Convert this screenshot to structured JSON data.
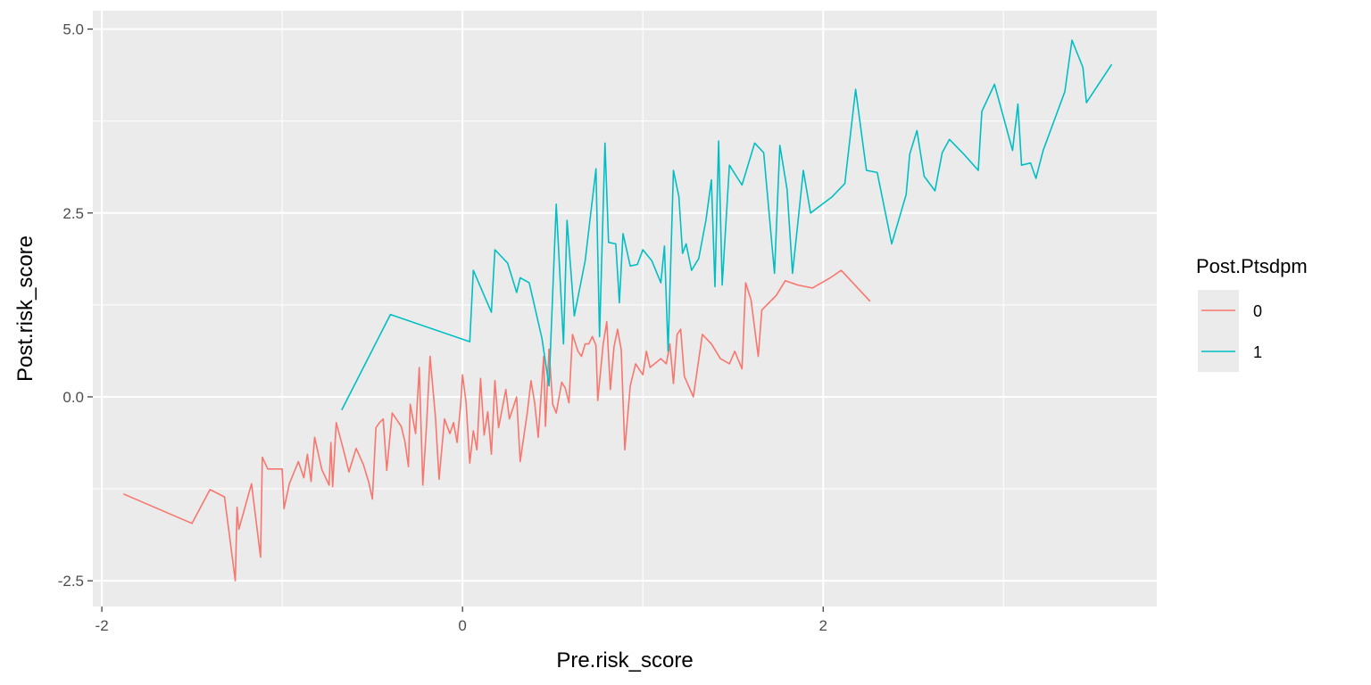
{
  "chart_data": {
    "type": "line",
    "xlabel": "Pre.risk_score",
    "ylabel": "Post.risk_score",
    "xlim": [
      -2.05,
      3.85
    ],
    "ylim": [
      -2.85,
      5.25
    ],
    "x_ticks": [
      -2,
      0,
      2
    ],
    "x_tick_labels": [
      "-2",
      "0",
      "2"
    ],
    "y_ticks": [
      -2.5,
      0.0,
      2.5,
      5.0
    ],
    "y_tick_labels": [
      "-2.5",
      "0.0",
      "2.5",
      "5.0"
    ],
    "grid": true,
    "legend": {
      "title": "Post.Ptsdpm",
      "placement": "right"
    },
    "series": [
      {
        "name": "0",
        "color": "#F8766D",
        "points": [
          [
            -1.88,
            -1.32
          ],
          [
            -1.5,
            -1.72
          ],
          [
            -1.4,
            -1.26
          ],
          [
            -1.32,
            -1.36
          ],
          [
            -1.26,
            -2.5
          ],
          [
            -1.25,
            -1.5
          ],
          [
            -1.24,
            -1.8
          ],
          [
            -1.17,
            -1.18
          ],
          [
            -1.12,
            -2.18
          ],
          [
            -1.11,
            -0.82
          ],
          [
            -1.08,
            -0.98
          ],
          [
            -1.04,
            -0.98
          ],
          [
            -1.0,
            -0.98
          ],
          [
            -0.99,
            -1.52
          ],
          [
            -0.96,
            -1.18
          ],
          [
            -0.91,
            -0.88
          ],
          [
            -0.88,
            -1.1
          ],
          [
            -0.86,
            -0.78
          ],
          [
            -0.84,
            -1.15
          ],
          [
            -0.82,
            -0.55
          ],
          [
            -0.78,
            -0.99
          ],
          [
            -0.74,
            -1.2
          ],
          [
            -0.73,
            -0.62
          ],
          [
            -0.72,
            -1.22
          ],
          [
            -0.7,
            -0.35
          ],
          [
            -0.66,
            -0.72
          ],
          [
            -0.63,
            -1.02
          ],
          [
            -0.59,
            -0.7
          ],
          [
            -0.55,
            -0.92
          ],
          [
            -0.52,
            -1.16
          ],
          [
            -0.5,
            -1.39
          ],
          [
            -0.48,
            -0.42
          ],
          [
            -0.46,
            -0.35
          ],
          [
            -0.44,
            -0.3
          ],
          [
            -0.42,
            -1.0
          ],
          [
            -0.39,
            -0.22
          ],
          [
            -0.34,
            -0.4
          ],
          [
            -0.32,
            -0.6
          ],
          [
            -0.3,
            -0.95
          ],
          [
            -0.29,
            -0.1
          ],
          [
            -0.26,
            -0.5
          ],
          [
            -0.24,
            0.4
          ],
          [
            -0.22,
            -1.2
          ],
          [
            -0.2,
            -0.4
          ],
          [
            -0.18,
            0.55
          ],
          [
            -0.15,
            -0.28
          ],
          [
            -0.13,
            -1.12
          ],
          [
            -0.1,
            -0.3
          ],
          [
            -0.07,
            -0.5
          ],
          [
            -0.05,
            -0.35
          ],
          [
            -0.03,
            -0.62
          ],
          [
            -0.01,
            -0.1
          ],
          [
            0.0,
            0.3
          ],
          [
            0.02,
            -0.08
          ],
          [
            0.04,
            -0.9
          ],
          [
            0.06,
            -0.46
          ],
          [
            0.08,
            -0.72
          ],
          [
            0.1,
            0.25
          ],
          [
            0.12,
            -0.52
          ],
          [
            0.14,
            -0.2
          ],
          [
            0.16,
            -0.78
          ],
          [
            0.18,
            0.22
          ],
          [
            0.2,
            -0.42
          ],
          [
            0.24,
            0.1
          ],
          [
            0.26,
            -0.3
          ],
          [
            0.3,
            0.0
          ],
          [
            0.32,
            -0.88
          ],
          [
            0.36,
            -0.2
          ],
          [
            0.38,
            0.22
          ],
          [
            0.4,
            -0.08
          ],
          [
            0.42,
            -0.55
          ],
          [
            0.45,
            0.55
          ],
          [
            0.46,
            -0.4
          ],
          [
            0.48,
            0.65
          ],
          [
            0.5,
            -0.1
          ],
          [
            0.52,
            -0.22
          ],
          [
            0.55,
            0.2
          ],
          [
            0.57,
            0.12
          ],
          [
            0.59,
            -0.08
          ],
          [
            0.61,
            0.85
          ],
          [
            0.64,
            0.62
          ],
          [
            0.66,
            0.55
          ],
          [
            0.68,
            0.72
          ],
          [
            0.7,
            0.72
          ],
          [
            0.72,
            0.82
          ],
          [
            0.74,
            0.7
          ],
          [
            0.75,
            -0.05
          ],
          [
            0.78,
            0.72
          ],
          [
            0.8,
            1.02
          ],
          [
            0.82,
            0.1
          ],
          [
            0.84,
            0.68
          ],
          [
            0.86,
            0.92
          ],
          [
            0.88,
            0.64
          ],
          [
            0.9,
            -0.72
          ],
          [
            0.93,
            0.15
          ],
          [
            0.96,
            0.45
          ],
          [
            1.0,
            0.3
          ],
          [
            1.02,
            0.62
          ],
          [
            1.04,
            0.4
          ],
          [
            1.08,
            0.48
          ],
          [
            1.1,
            0.52
          ],
          [
            1.13,
            0.45
          ],
          [
            1.15,
            0.72
          ],
          [
            1.17,
            0.18
          ],
          [
            1.19,
            0.85
          ],
          [
            1.21,
            0.92
          ],
          [
            1.23,
            0.28
          ],
          [
            1.28,
            0.0
          ],
          [
            1.33,
            0.85
          ],
          [
            1.38,
            0.72
          ],
          [
            1.43,
            0.52
          ],
          [
            1.48,
            0.45
          ],
          [
            1.51,
            0.62
          ],
          [
            1.55,
            0.38
          ],
          [
            1.57,
            1.55
          ],
          [
            1.6,
            1.32
          ],
          [
            1.64,
            0.55
          ],
          [
            1.66,
            1.18
          ],
          [
            1.74,
            1.38
          ],
          [
            1.79,
            1.58
          ],
          [
            1.86,
            1.52
          ],
          [
            1.94,
            1.48
          ],
          [
            2.04,
            1.62
          ],
          [
            2.1,
            1.72
          ],
          [
            2.26,
            1.3
          ]
        ]
      },
      {
        "name": "1",
        "color": "#00BFC4",
        "points": [
          [
            -0.67,
            -0.18
          ],
          [
            -0.4,
            1.12
          ],
          [
            0.04,
            0.75
          ],
          [
            0.06,
            1.72
          ],
          [
            0.16,
            1.15
          ],
          [
            0.18,
            2.0
          ],
          [
            0.25,
            1.82
          ],
          [
            0.3,
            1.42
          ],
          [
            0.32,
            1.62
          ],
          [
            0.37,
            1.55
          ],
          [
            0.44,
            0.8
          ],
          [
            0.48,
            0.15
          ],
          [
            0.52,
            2.62
          ],
          [
            0.56,
            0.72
          ],
          [
            0.58,
            2.4
          ],
          [
            0.62,
            1.1
          ],
          [
            0.68,
            1.85
          ],
          [
            0.74,
            3.1
          ],
          [
            0.76,
            0.82
          ],
          [
            0.79,
            3.45
          ],
          [
            0.81,
            2.1
          ],
          [
            0.85,
            2.08
          ],
          [
            0.87,
            1.28
          ],
          [
            0.89,
            2.22
          ],
          [
            0.93,
            1.78
          ],
          [
            0.97,
            1.8
          ],
          [
            1.0,
            2.0
          ],
          [
            1.05,
            1.85
          ],
          [
            1.1,
            1.55
          ],
          [
            1.12,
            2.05
          ],
          [
            1.14,
            0.62
          ],
          [
            1.17,
            3.08
          ],
          [
            1.2,
            2.72
          ],
          [
            1.22,
            1.95
          ],
          [
            1.24,
            2.08
          ],
          [
            1.27,
            1.72
          ],
          [
            1.31,
            1.88
          ],
          [
            1.35,
            2.4
          ],
          [
            1.38,
            2.95
          ],
          [
            1.4,
            1.5
          ],
          [
            1.42,
            3.48
          ],
          [
            1.44,
            1.52
          ],
          [
            1.48,
            3.15
          ],
          [
            1.55,
            2.88
          ],
          [
            1.62,
            3.45
          ],
          [
            1.67,
            3.32
          ],
          [
            1.73,
            1.68
          ],
          [
            1.76,
            3.42
          ],
          [
            1.8,
            2.82
          ],
          [
            1.83,
            1.68
          ],
          [
            1.86,
            2.38
          ],
          [
            1.89,
            3.08
          ],
          [
            1.93,
            2.5
          ],
          [
            2.05,
            2.72
          ],
          [
            2.12,
            2.9
          ],
          [
            2.18,
            4.18
          ],
          [
            2.24,
            3.08
          ],
          [
            2.3,
            3.05
          ],
          [
            2.38,
            2.08
          ],
          [
            2.46,
            2.75
          ],
          [
            2.48,
            3.3
          ],
          [
            2.52,
            3.62
          ],
          [
            2.56,
            3.0
          ],
          [
            2.62,
            2.8
          ],
          [
            2.66,
            3.32
          ],
          [
            2.7,
            3.5
          ],
          [
            2.78,
            3.3
          ],
          [
            2.86,
            3.08
          ],
          [
            2.88,
            3.88
          ],
          [
            2.95,
            4.25
          ],
          [
            3.05,
            3.35
          ],
          [
            3.08,
            3.98
          ],
          [
            3.1,
            3.15
          ],
          [
            3.15,
            3.18
          ],
          [
            3.18,
            2.97
          ],
          [
            3.22,
            3.35
          ],
          [
            3.34,
            4.15
          ],
          [
            3.38,
            4.85
          ],
          [
            3.44,
            4.48
          ],
          [
            3.46,
            4.0
          ],
          [
            3.6,
            4.52
          ]
        ]
      }
    ]
  }
}
